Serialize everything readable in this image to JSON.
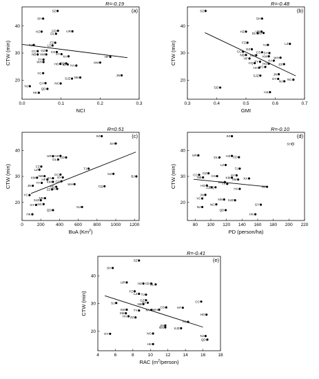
{
  "chart_data": [
    {
      "type": "scatter",
      "panel": "(a)",
      "r_label": "R=-0.19",
      "xlabel": "NCI",
      "ylabel": "CTW (min)",
      "xlim": [
        0.0,
        0.3
      ],
      "ylim": [
        13,
        47
      ],
      "xticks": [
        0.0,
        0.1,
        0.2,
        0.3
      ],
      "xtick_labels": [
        "0.0",
        "0.1",
        "0.2",
        "0.3"
      ],
      "yticks": [
        20,
        30,
        40
      ],
      "trend": [
        [
          0.0,
          33.2
        ],
        [
          0.27,
          28.3
        ]
      ],
      "points": [
        {
          "label": "SZ",
          "x": 0.091,
          "y": 45.5
        },
        {
          "label": "SH",
          "x": 0.054,
          "y": 42.7
        },
        {
          "label": "GD",
          "x": 0.092,
          "y": 38.2
        },
        {
          "label": "UR",
          "x": 0.129,
          "y": 38.0
        },
        {
          "label": "HZ",
          "x": 0.05,
          "y": 37.9
        },
        {
          "label": "DL",
          "x": 0.087,
          "y": 37.1
        },
        {
          "label": "FZ",
          "x": 0.085,
          "y": 33.8
        },
        {
          "label": "TJ",
          "x": 0.03,
          "y": 33.0
        },
        {
          "label": "LZ",
          "x": 0.078,
          "y": 32.8
        },
        {
          "label": "GZ",
          "x": 0.063,
          "y": 30.9
        },
        {
          "label": "CS",
          "x": 0.089,
          "y": 30.4
        },
        {
          "label": "CC",
          "x": 0.04,
          "y": 30.7
        },
        {
          "label": "NB",
          "x": 0.04,
          "y": 29.5
        },
        {
          "label": "XM",
          "x": 0.062,
          "y": 29.5
        },
        {
          "label": "SY",
          "x": 0.101,
          "y": 29.6
        },
        {
          "label": "XA",
          "x": 0.119,
          "y": 28.8
        },
        {
          "label": "TY",
          "x": 0.055,
          "y": 27.6
        },
        {
          "label": "WH",
          "x": 0.055,
          "y": 26.7
        },
        {
          "label": "HF",
          "x": 0.226,
          "y": 28.6
        },
        {
          "label": "KM",
          "x": 0.2,
          "y": 26.5
        },
        {
          "label": "HO",
          "x": 0.098,
          "y": 26.0
        },
        {
          "label": "CQ",
          "x": 0.113,
          "y": 26.2
        },
        {
          "label": "HA",
          "x": 0.139,
          "y": 25.4
        },
        {
          "label": "ZZ",
          "x": 0.117,
          "y": 25.8
        },
        {
          "label": "YC",
          "x": 0.054,
          "y": 22.6
        },
        {
          "label": "JN",
          "x": 0.255,
          "y": 21.8
        },
        {
          "label": "NN",
          "x": 0.149,
          "y": 21.0
        },
        {
          "label": "SJZ",
          "x": 0.128,
          "y": 20.6
        },
        {
          "label": "NC",
          "x": 0.099,
          "y": 18.8
        },
        {
          "label": "GY",
          "x": 0.06,
          "y": 18.9
        },
        {
          "label": "NJ",
          "x": 0.02,
          "y": 17.8
        },
        {
          "label": "QD",
          "x": 0.065,
          "y": 16.8
        },
        {
          "label": "HK",
          "x": 0.043,
          "y": 15.4
        }
      ]
    },
    {
      "type": "scatter",
      "panel": "(b)",
      "r_label": "R=-0.48",
      "xlabel": "GMI",
      "ylabel": "CTW (min)",
      "xlim": [
        0.3,
        0.7
      ],
      "ylim": [
        13,
        47
      ],
      "xticks": [
        0.3,
        0.4,
        0.5,
        0.6,
        0.7
      ],
      "xtick_labels": [
        "0.3",
        "0.4",
        "0.5",
        "0.6",
        "0.7"
      ],
      "yticks": [
        20,
        30,
        40
      ],
      "trend": [
        [
          0.36,
          37.5
        ],
        [
          0.67,
          21.6
        ]
      ],
      "points": [
        {
          "label": "SZ",
          "x": 0.362,
          "y": 45.5
        },
        {
          "label": "SH",
          "x": 0.555,
          "y": 42.7
        },
        {
          "label": "HZ",
          "x": 0.5,
          "y": 37.9
        },
        {
          "label": "DL",
          "x": 0.54,
          "y": 37.3
        },
        {
          "label": "UR",
          "x": 0.553,
          "y": 37.9
        },
        {
          "label": "CD",
          "x": 0.56,
          "y": 37.4
        },
        {
          "label": "LZ",
          "x": 0.65,
          "y": 33.4
        },
        {
          "label": "FZ",
          "x": 0.505,
          "y": 33.8
        },
        {
          "label": "TJ",
          "x": 0.575,
          "y": 33.0
        },
        {
          "label": "GZ",
          "x": 0.52,
          "y": 31.4
        },
        {
          "label": "CC",
          "x": 0.49,
          "y": 30.5
        },
        {
          "label": "CS",
          "x": 0.555,
          "y": 30.3
        },
        {
          "label": "SY",
          "x": 0.58,
          "y": 30.0
        },
        {
          "label": "NB",
          "x": 0.5,
          "y": 29.3
        },
        {
          "label": "XM",
          "x": 0.535,
          "y": 29.2
        },
        {
          "label": "KM",
          "x": 0.578,
          "y": 28.8
        },
        {
          "label": "WH",
          "x": 0.618,
          "y": 28.3
        },
        {
          "label": "HF",
          "x": 0.512,
          "y": 28.0
        },
        {
          "label": "XA",
          "x": 0.595,
          "y": 27.2
        },
        {
          "label": "TY",
          "x": 0.548,
          "y": 26.8
        },
        {
          "label": "CQ",
          "x": 0.53,
          "y": 26.3
        },
        {
          "label": "HO",
          "x": 0.578,
          "y": 26.1
        },
        {
          "label": "ZZ",
          "x": 0.63,
          "y": 25.9
        },
        {
          "label": "YC",
          "x": 0.566,
          "y": 24.9
        },
        {
          "label": "HA",
          "x": 0.545,
          "y": 24.6
        },
        {
          "label": "JN",
          "x": 0.612,
          "y": 22.2
        },
        {
          "label": "SJZ",
          "x": 0.549,
          "y": 21.7
        },
        {
          "label": "GY",
          "x": 0.61,
          "y": 20.5
        },
        {
          "label": "NJ",
          "x": 0.631,
          "y": 19.6
        },
        {
          "label": "NC",
          "x": 0.662,
          "y": 20.2
        },
        {
          "label": "GD",
          "x": 0.412,
          "y": 17.3
        },
        {
          "label": "HK",
          "x": 0.582,
          "y": 15.6
        }
      ]
    },
    {
      "type": "scatter",
      "panel": "(c)",
      "r_label": "R=0.51",
      "xlabel": "BuA (Km²)",
      "ylabel": "CTW (min)",
      "xlim": [
        0,
        1250
      ],
      "ylim": [
        13,
        47
      ],
      "xticks": [
        0,
        200,
        400,
        600,
        800,
        1000,
        1200
      ],
      "xtick_labels": [
        "0",
        "200",
        "400",
        "600",
        "800",
        "1000",
        "1200"
      ],
      "yticks": [
        20,
        30,
        40
      ],
      "trend": [
        [
          95,
          23.4
        ],
        [
          1215,
          39.4
        ]
      ],
      "points": [
        {
          "label": "SZ",
          "x": 850,
          "y": 45.5
        },
        {
          "label": "SH",
          "x": 1000,
          "y": 42.7
        },
        {
          "label": "UR",
          "x": 330,
          "y": 37.8
        },
        {
          "label": "HZ",
          "x": 410,
          "y": 37.9
        },
        {
          "label": "CD",
          "x": 470,
          "y": 37.3
        },
        {
          "label": "DL",
          "x": 385,
          "y": 36.5
        },
        {
          "label": "TJ",
          "x": 710,
          "y": 33.0
        },
        {
          "label": "FZ",
          "x": 205,
          "y": 33.8
        },
        {
          "label": "LZ",
          "x": 185,
          "y": 32.6
        },
        {
          "label": "GZ",
          "x": 975,
          "y": 31.0
        },
        {
          "label": "BJ",
          "x": 1220,
          "y": 30.0
        },
        {
          "label": "CC",
          "x": 410,
          "y": 30.7
        },
        {
          "label": "NB",
          "x": 240,
          "y": 30.1
        },
        {
          "label": "XM",
          "x": 160,
          "y": 29.5
        },
        {
          "label": "XA",
          "x": 330,
          "y": 29.3
        },
        {
          "label": "SY",
          "x": 435,
          "y": 29.6
        },
        {
          "label": "HF",
          "x": 270,
          "y": 28.8
        },
        {
          "label": "TY",
          "x": 210,
          "y": 27.5
        },
        {
          "label": "WH",
          "x": 560,
          "y": 27.0
        },
        {
          "label": "KM",
          "x": 330,
          "y": 27.9
        },
        {
          "label": "CS",
          "x": 420,
          "y": 28.1
        },
        {
          "label": "JN",
          "x": 115,
          "y": 26.4
        },
        {
          "label": "CQ",
          "x": 880,
          "y": 26.2
        },
        {
          "label": "HO",
          "x": 365,
          "y": 26.0
        },
        {
          "label": "HA",
          "x": 375,
          "y": 25.2
        },
        {
          "label": "ZZ",
          "x": 320,
          "y": 25.0
        },
        {
          "label": "YC",
          "x": 80,
          "y": 22.8
        },
        {
          "label": "NN",
          "x": 245,
          "y": 21.6
        },
        {
          "label": "SJZ",
          "x": 200,
          "y": 20.8
        },
        {
          "label": "NC",
          "x": 230,
          "y": 19.3
        },
        {
          "label": "GY",
          "x": 150,
          "y": 19.0
        },
        {
          "label": "NJ",
          "x": 640,
          "y": 18.2
        },
        {
          "label": "QD",
          "x": 330,
          "y": 17.0
        },
        {
          "label": "HK",
          "x": 110,
          "y": 15.4
        }
      ]
    },
    {
      "type": "scatter",
      "panel": "(d)",
      "r_label": "R=-0.10",
      "xlabel": "PD (person/ha)",
      "ylabel": "CTW (min)",
      "xlim": [
        70,
        220
      ],
      "ylim": [
        13,
        47
      ],
      "xticks": [
        80,
        100,
        120,
        140,
        160,
        180,
        200,
        220
      ],
      "xtick_labels": [
        "80",
        "100",
        "120",
        "140",
        "160",
        "180",
        "200",
        "220"
      ],
      "yticks": [
        20,
        30,
        40
      ],
      "trend": [
        [
          78,
          28.9
        ],
        [
          172,
          26.0
        ]
      ],
      "points": [
        {
          "label": "SZ",
          "x": 127,
          "y": 45.5
        },
        {
          "label": "SH",
          "x": 205,
          "y": 42.5,
          "hollow": true
        },
        {
          "label": "UR",
          "x": 84,
          "y": 38.1
        },
        {
          "label": "DL",
          "x": 111,
          "y": 37.3
        },
        {
          "label": "HZ",
          "x": 127,
          "y": 37.9
        },
        {
          "label": "CD",
          "x": 136,
          "y": 37.4
        },
        {
          "label": "LZ",
          "x": 119,
          "y": 34.4
        },
        {
          "label": "TJ",
          "x": 137,
          "y": 33.0
        },
        {
          "label": "GZ",
          "x": 97,
          "y": 31.2
        },
        {
          "label": "CC",
          "x": 85,
          "y": 30.6
        },
        {
          "label": "NB",
          "x": 90,
          "y": 29.6
        },
        {
          "label": "CS",
          "x": 108,
          "y": 30.1
        },
        {
          "label": "SY",
          "x": 133,
          "y": 30.4
        },
        {
          "label": "KM",
          "x": 127,
          "y": 29.5
        },
        {
          "label": "XA",
          "x": 149,
          "y": 29.2
        },
        {
          "label": "XM",
          "x": 135,
          "y": 28.8
        },
        {
          "label": "WH",
          "x": 118,
          "y": 27.8
        },
        {
          "label": "TY",
          "x": 121,
          "y": 27.1
        },
        {
          "label": "HO",
          "x": 95,
          "y": 26.5
        },
        {
          "label": "ZZ",
          "x": 101,
          "y": 25.8
        },
        {
          "label": "CQ",
          "x": 106,
          "y": 25.8
        },
        {
          "label": "HA",
          "x": 137,
          "y": 25.2
        },
        {
          "label": "BJ",
          "x": 172,
          "y": 26.0
        },
        {
          "label": "JN",
          "x": 93,
          "y": 22.9
        },
        {
          "label": "YC",
          "x": 89,
          "y": 21.5
        },
        {
          "label": "NN",
          "x": 117,
          "y": 21.1
        },
        {
          "label": "SJZ",
          "x": 131,
          "y": 20.8
        },
        {
          "label": "NC",
          "x": 107,
          "y": 19.2
        },
        {
          "label": "NJ",
          "x": 89,
          "y": 18.2
        },
        {
          "label": "GY",
          "x": 164,
          "y": 19.1
        },
        {
          "label": "QD",
          "x": 119,
          "y": 17.0
        },
        {
          "label": "HK",
          "x": 157,
          "y": 15.4
        }
      ]
    },
    {
      "type": "scatter",
      "panel": "(e)",
      "r_label": "R=-0.41",
      "xlabel": "RAC (m²/person)",
      "ylabel": "CTW (min)",
      "xlim": [
        4,
        18
      ],
      "ylim": [
        13,
        47
      ],
      "xticks": [
        4,
        6,
        8,
        10,
        12,
        14,
        16,
        18
      ],
      "xtick_labels": [
        "4",
        "6",
        "8",
        "10",
        "12",
        "14",
        "16",
        "18"
      ],
      "yticks": [
        20,
        30,
        40
      ],
      "trend": [
        [
          4.8,
          32.8
        ],
        [
          16.0,
          21.5
        ]
      ],
      "points": [
        {
          "label": "SZ",
          "x": 8.7,
          "y": 45.5
        },
        {
          "label": "SH",
          "x": 5.7,
          "y": 42.8
        },
        {
          "label": "UR",
          "x": 7.3,
          "y": 37.6
        },
        {
          "label": "HZ",
          "x": 9.2,
          "y": 37.2
        },
        {
          "label": "CD",
          "x": 10.1,
          "y": 37.2
        },
        {
          "label": "DL",
          "x": 10.6,
          "y": 36.9
        },
        {
          "label": "FZ",
          "x": 8.2,
          "y": 34.4
        },
        {
          "label": "LZ",
          "x": 8.7,
          "y": 33.5
        },
        {
          "label": "TJ",
          "x": 9.5,
          "y": 33.2
        },
        {
          "label": "GZ",
          "x": 9.5,
          "y": 31.2
        },
        {
          "label": "SJ",
          "x": 6.1,
          "y": 30.2
        },
        {
          "label": "SY",
          "x": 9.7,
          "y": 30.3
        },
        {
          "label": "NB",
          "x": 9.2,
          "y": 29.8
        },
        {
          "label": "CC",
          "x": 15.8,
          "y": 30.7
        },
        {
          "label": "CS",
          "x": 11.8,
          "y": 28.6
        },
        {
          "label": "HF",
          "x": 13.7,
          "y": 28.5
        },
        {
          "label": "KM",
          "x": 7.3,
          "y": 27.8
        },
        {
          "label": "TY",
          "x": 8.7,
          "y": 27.5
        },
        {
          "label": "XA",
          "x": 10.1,
          "y": 27.7
        },
        {
          "label": "WH",
          "x": 11.0,
          "y": 27.8
        },
        {
          "label": "XM",
          "x": 7.2,
          "y": 26.5
        },
        {
          "label": "HO",
          "x": 16.4,
          "y": 26.0
        },
        {
          "label": "HA",
          "x": 7.5,
          "y": 25.4
        },
        {
          "label": "ZZ",
          "x": 8.3,
          "y": 25.0
        },
        {
          "label": "YC",
          "x": 14.3,
          "y": 23.4
        },
        {
          "label": "JN",
          "x": 11.7,
          "y": 22.1
        },
        {
          "label": "NN",
          "x": 11.7,
          "y": 21.4
        },
        {
          "label": "SJZ",
          "x": 13.5,
          "y": 21.1
        },
        {
          "label": "NC",
          "x": 10.3,
          "y": 19.2
        },
        {
          "label": "GY",
          "x": 5.4,
          "y": 19.1
        },
        {
          "label": "NJ",
          "x": 16.3,
          "y": 18.3
        },
        {
          "label": "QD",
          "x": 16.5,
          "y": 17.0
        },
        {
          "label": "HK",
          "x": 10.3,
          "y": 15.4
        }
      ]
    }
  ]
}
